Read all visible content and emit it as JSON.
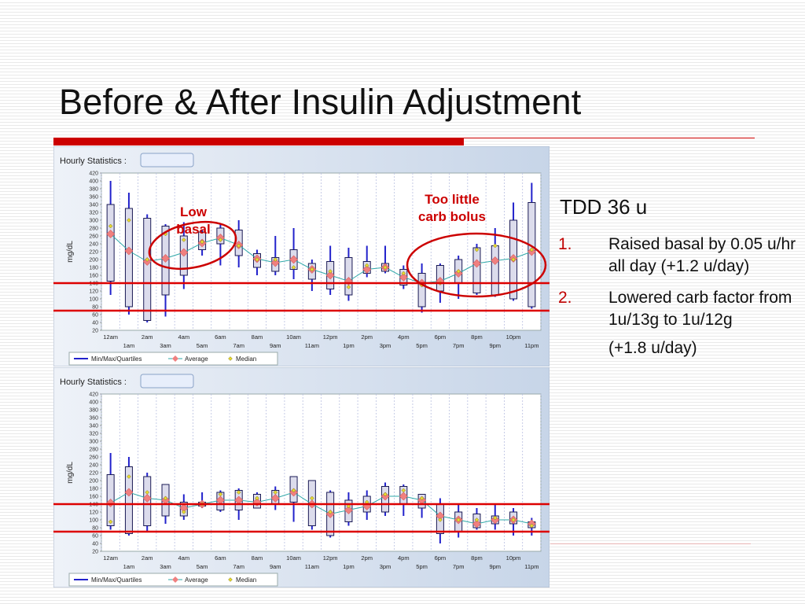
{
  "slide": {
    "title": "Before & After Insulin Adjustment",
    "tdd": "TDD 36 u",
    "items": [
      {
        "num": "1.",
        "text": "Raised basal by 0.05 u/hr all day (+1.2 u/day)"
      },
      {
        "num": "2.",
        "text": "Lowered carb factor from 1u/13g to 1u/12g",
        "sub": "(+1.8 u/day)"
      }
    ]
  },
  "annotations": {
    "low_basal": [
      "Low",
      "basal"
    ],
    "too_little": [
      "Too little",
      "carb bolus"
    ]
  },
  "colors": {
    "accent_red": "#cc0000",
    "box_fill": "#dcdcec",
    "whisker_blue": "#2222cc",
    "average_pink": "#f08080",
    "average_line": "#2ea8a8",
    "median_yellow": "#e8d830",
    "target_line": "#dd0000"
  },
  "chart_data": [
    {
      "type": "box",
      "header": "Hourly Statistics :",
      "ylabel": "mg/dL",
      "ylim": [
        20,
        420
      ],
      "yticks": [
        20,
        40,
        60,
        80,
        100,
        120,
        140,
        160,
        180,
        200,
        220,
        240,
        260,
        280,
        300,
        320,
        340,
        360,
        380,
        400,
        420
      ],
      "x_top": [
        "12am",
        "2am",
        "4am",
        "6am",
        "8am",
        "10am",
        "12pm",
        "2pm",
        "4pm",
        "6pm",
        "8pm",
        "10pm"
      ],
      "x_bottom": [
        "1am",
        "3am",
        "5am",
        "7am",
        "9am",
        "11am",
        "1pm",
        "3pm",
        "5pm",
        "7pm",
        "9pm",
        "11pm"
      ],
      "target_lines": [
        140,
        70
      ],
      "legend": [
        "Min/Max/Quartiles",
        "Average",
        "Median"
      ],
      "hours": [
        {
          "min": 110,
          "q1": 145,
          "q3": 340,
          "max": 400,
          "avg": 265,
          "median": 285
        },
        {
          "min": 60,
          "q1": 80,
          "q3": 330,
          "max": 370,
          "avg": 222,
          "median": 300
        },
        {
          "min": 40,
          "q1": 45,
          "q3": 305,
          "max": 315,
          "avg": 195,
          "median": 200
        },
        {
          "min": 55,
          "q1": 110,
          "q3": 285,
          "max": 290,
          "avg": 203,
          "median": 265
        },
        {
          "min": 125,
          "q1": 160,
          "q3": 260,
          "max": 295,
          "avg": 218,
          "median": 250
        },
        {
          "min": 210,
          "q1": 225,
          "q3": 270,
          "max": 275,
          "avg": 242,
          "median": 245
        },
        {
          "min": 185,
          "q1": 240,
          "q3": 280,
          "max": 290,
          "avg": 255,
          "median": 250
        },
        {
          "min": 180,
          "q1": 210,
          "q3": 275,
          "max": 300,
          "avg": 237,
          "median": 235
        },
        {
          "min": 160,
          "q1": 180,
          "q3": 215,
          "max": 225,
          "avg": 202,
          "median": 200
        },
        {
          "min": 160,
          "q1": 170,
          "q3": 205,
          "max": 260,
          "avg": 192,
          "median": 200
        },
        {
          "min": 150,
          "q1": 175,
          "q3": 225,
          "max": 280,
          "avg": 200,
          "median": 180
        },
        {
          "min": 120,
          "q1": 150,
          "q3": 190,
          "max": 200,
          "avg": 175,
          "median": 175
        },
        {
          "min": 110,
          "q1": 125,
          "q3": 195,
          "max": 235,
          "avg": 160,
          "median": 170
        },
        {
          "min": 95,
          "q1": 110,
          "q3": 205,
          "max": 230,
          "avg": 145,
          "median": 130
        },
        {
          "min": 155,
          "q1": 165,
          "q3": 195,
          "max": 235,
          "avg": 175,
          "median": 185
        },
        {
          "min": 165,
          "q1": 170,
          "q3": 190,
          "max": 235,
          "avg": 180,
          "median": 180
        },
        {
          "min": 125,
          "q1": 135,
          "q3": 175,
          "max": 185,
          "avg": 155,
          "median": 165
        },
        {
          "min": 65,
          "q1": 80,
          "q3": 165,
          "max": 190,
          "avg": 140,
          "median": 135
        },
        {
          "min": 90,
          "q1": 120,
          "q3": 185,
          "max": 190,
          "avg": 145,
          "median": 140
        },
        {
          "min": 100,
          "q1": 140,
          "q3": 200,
          "max": 210,
          "avg": 165,
          "median": 170
        },
        {
          "min": 110,
          "q1": 115,
          "q3": 230,
          "max": 240,
          "avg": 190,
          "median": 225
        },
        {
          "min": 105,
          "q1": 110,
          "q3": 235,
          "max": 280,
          "avg": 197,
          "median": 235
        },
        {
          "min": 95,
          "q1": 100,
          "q3": 300,
          "max": 345,
          "avg": 203,
          "median": 200
        },
        {
          "min": 75,
          "q1": 80,
          "q3": 345,
          "max": 395,
          "avg": 220,
          "median": 225
        }
      ]
    },
    {
      "type": "box",
      "header": "Hourly Statistics :",
      "ylabel": "mg/dL",
      "ylim": [
        20,
        420
      ],
      "yticks": [
        20,
        40,
        60,
        80,
        100,
        120,
        140,
        160,
        180,
        200,
        220,
        240,
        260,
        280,
        300,
        320,
        340,
        360,
        380,
        400,
        420
      ],
      "x_top": [
        "12am",
        "2am",
        "4am",
        "6am",
        "8am",
        "10am",
        "12pm",
        "2pm",
        "4pm",
        "6pm",
        "8pm",
        "10pm"
      ],
      "x_bottom": [
        "1am",
        "3am",
        "5am",
        "7am",
        "9am",
        "11am",
        "1pm",
        "3pm",
        "5pm",
        "7pm",
        "9pm",
        "11pm"
      ],
      "target_lines": [
        140,
        70
      ],
      "legend": [
        "Min/Max/Quartiles",
        "Average",
        "Median"
      ],
      "hours": [
        {
          "min": 75,
          "q1": 85,
          "q3": 215,
          "max": 270,
          "avg": 143,
          "median": 95
        },
        {
          "min": 60,
          "q1": 65,
          "q3": 235,
          "max": 260,
          "avg": 170,
          "median": 210
        },
        {
          "min": 70,
          "q1": 85,
          "q3": 210,
          "max": 220,
          "avg": 155,
          "median": 170
        },
        {
          "min": 90,
          "q1": 110,
          "q3": 190,
          "max": 190,
          "avg": 150,
          "median": 155
        },
        {
          "min": 100,
          "q1": 110,
          "q3": 145,
          "max": 165,
          "avg": 130,
          "median": 120
        },
        {
          "min": 130,
          "q1": 135,
          "q3": 145,
          "max": 170,
          "avg": 140,
          "median": 140
        },
        {
          "min": 120,
          "q1": 125,
          "q3": 170,
          "max": 175,
          "avg": 150,
          "median": 165
        },
        {
          "min": 100,
          "q1": 125,
          "q3": 175,
          "max": 180,
          "avg": 150,
          "median": 170
        },
        {
          "min": 130,
          "q1": 130,
          "q3": 165,
          "max": 170,
          "avg": 145,
          "median": 155
        },
        {
          "min": 125,
          "q1": 140,
          "q3": 175,
          "max": 185,
          "avg": 155,
          "median": 170
        },
        {
          "min": 95,
          "q1": 145,
          "q3": 210,
          "max": 210,
          "avg": 170,
          "median": 175
        },
        {
          "min": 75,
          "q1": 85,
          "q3": 200,
          "max": 200,
          "avg": 140,
          "median": 155
        },
        {
          "min": 55,
          "q1": 60,
          "q3": 170,
          "max": 175,
          "avg": 115,
          "median": 120
        },
        {
          "min": 85,
          "q1": 95,
          "q3": 150,
          "max": 170,
          "avg": 125,
          "median": 135
        },
        {
          "min": 100,
          "q1": 120,
          "q3": 160,
          "max": 175,
          "avg": 135,
          "median": 145
        },
        {
          "min": 110,
          "q1": 120,
          "q3": 185,
          "max": 195,
          "avg": 160,
          "median": 165
        },
        {
          "min": 110,
          "q1": 140,
          "q3": 185,
          "max": 190,
          "avg": 160,
          "median": 175
        },
        {
          "min": 105,
          "q1": 130,
          "q3": 165,
          "max": 165,
          "avg": 150,
          "median": 155
        },
        {
          "min": 40,
          "q1": 65,
          "q3": 140,
          "max": 155,
          "avg": 110,
          "median": 100
        },
        {
          "min": 55,
          "q1": 70,
          "q3": 120,
          "max": 140,
          "avg": 100,
          "median": 100
        },
        {
          "min": 75,
          "q1": 80,
          "q3": 115,
          "max": 130,
          "avg": 90,
          "median": 100
        },
        {
          "min": 75,
          "q1": 90,
          "q3": 110,
          "max": 140,
          "avg": 100,
          "median": 105
        },
        {
          "min": 60,
          "q1": 90,
          "q3": 120,
          "max": 130,
          "avg": 100,
          "median": 100
        },
        {
          "min": 60,
          "q1": 80,
          "q3": 95,
          "max": 105,
          "avg": 90,
          "median": 85
        }
      ]
    }
  ]
}
